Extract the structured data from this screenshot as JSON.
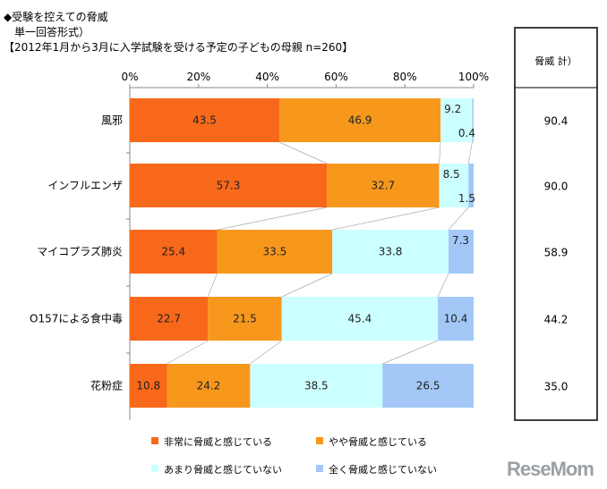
{
  "header": {
    "title": "◆受験を控えての脅威",
    "subtitle": "単一回答形式）",
    "sample": "【2012年1月から3月に入学試験を受ける予定の子どもの母親 n=260】"
  },
  "logo_text": "ReseMom",
  "chart_data": {
    "type": "bar",
    "orientation": "horizontal-stacked-100",
    "categories": [
      "風邪",
      "インフルエンザ",
      "マイコプラズ肺炎",
      "O157による食中毒",
      "花粉症"
    ],
    "xticks": [
      "0%",
      "20%",
      "40%",
      "60%",
      "80%",
      "100%"
    ],
    "xlim": [
      0,
      100
    ],
    "series": [
      {
        "name": "非常に脅威と感じている",
        "color": "#F8681A",
        "values": [
          43.5,
          57.3,
          25.4,
          22.7,
          10.8
        ]
      },
      {
        "name": "やや脅威と感じている",
        "color": "#F7981D",
        "values": [
          46.9,
          32.7,
          33.5,
          21.5,
          24.2
        ]
      },
      {
        "name": "あまり脅威と感じていない",
        "color": "#CCFFFF",
        "values": [
          9.2,
          8.5,
          33.8,
          45.4,
          38.5
        ]
      },
      {
        "name": "全く脅威と感じていない",
        "color": "#A3C8F7",
        "values": [
          0.4,
          1.5,
          7.3,
          10.4,
          26.5
        ]
      }
    ],
    "legend_placement": "bottom",
    "side_table": {
      "header": "脅威 計）",
      "values": [
        "90.4",
        "90.0",
        "58.9",
        "44.2",
        "35.0"
      ]
    }
  }
}
